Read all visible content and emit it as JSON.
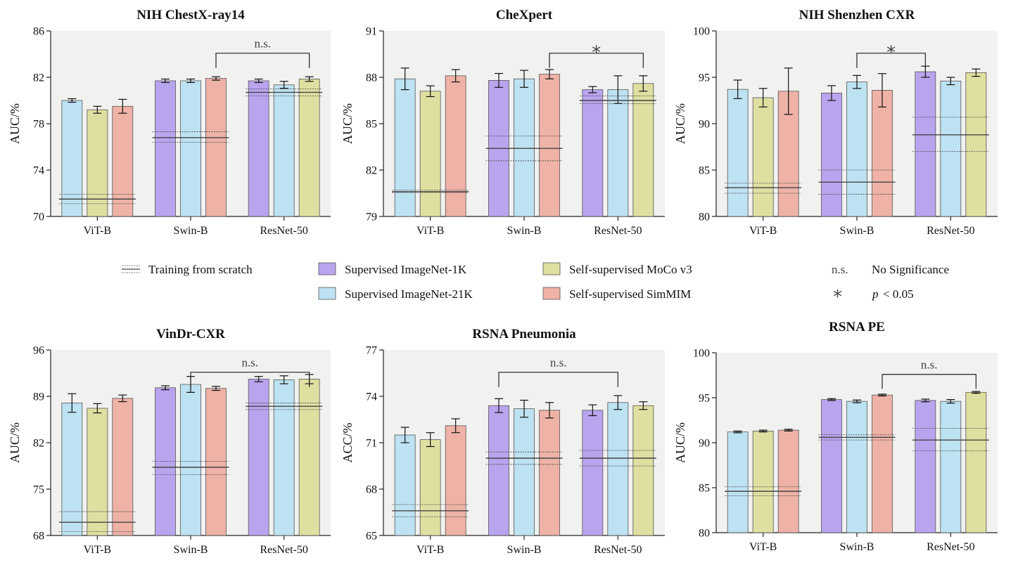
{
  "colors": {
    "Supervised ImageNet-1K": "#b9a4ee",
    "Supervised ImageNet-21K": "#bde2f2",
    "Self-supervised MoCo v3": "#dfdfa1",
    "Self-supervised SimMIM": "#eeb2a6",
    "panel_background": "#f1f1f0"
  },
  "legend": {
    "scratch": "Training from scratch",
    "in1k": "Supervised ImageNet-1K",
    "in21k": "Supervised ImageNet-21K",
    "moco": "Self-supervised MoCo v3",
    "simmim": "Self-supervised SimMIM",
    "ns_symbol": "n.s.",
    "ns_text": "No Significance",
    "star_symbol": "*",
    "p_label": "p",
    "p_text": "< 0.05"
  },
  "chart_data": [
    {
      "type": "bar",
      "title": "NIH ChestX-ray14",
      "ylabel": "AUC/%",
      "ylim": [
        70,
        86
      ],
      "yticks": [
        70,
        74,
        78,
        82,
        86
      ],
      "categories": [
        "ViT-B",
        "Swin-B",
        "ResNet-50"
      ],
      "groups": [
        {
          "bars": [
            {
              "series": "Supervised ImageNet-21K",
              "value": 80.0,
              "err": 0.15
            },
            {
              "series": "Self-supervised MoCo v3",
              "value": 79.2,
              "err": 0.3
            },
            {
              "series": "Self-supervised SimMIM",
              "value": 79.5,
              "err": 0.6
            }
          ],
          "scratch": {
            "mean": 71.5,
            "low": 71.1,
            "high": 71.9
          }
        },
        {
          "bars": [
            {
              "series": "Supervised ImageNet-1K",
              "value": 81.7,
              "err": 0.15
            },
            {
              "series": "Supervised ImageNet-21K",
              "value": 81.7,
              "err": 0.15
            },
            {
              "series": "Self-supervised SimMIM",
              "value": 81.9,
              "err": 0.15
            }
          ],
          "scratch": {
            "mean": 76.8,
            "low": 76.4,
            "high": 77.3
          }
        },
        {
          "bars": [
            {
              "series": "Supervised ImageNet-1K",
              "value": 81.7,
              "err": 0.15
            },
            {
              "series": "Supervised ImageNet-21K",
              "value": 81.35,
              "err": 0.3
            },
            {
              "series": "Self-supervised MoCo v3",
              "value": 81.85,
              "err": 0.2
            }
          ],
          "scratch": {
            "mean": 80.7,
            "low": 80.4,
            "high": 81.0
          }
        }
      ],
      "comparison": {
        "from_group": 1,
        "from_bar": 2,
        "to_group": 2,
        "to_bar": 2,
        "label": "n.s."
      }
    },
    {
      "type": "bar",
      "title": "CheXpert",
      "ylabel": "AUC/%",
      "ylim": [
        79,
        91
      ],
      "yticks": [
        79,
        82,
        85,
        88,
        91
      ],
      "categories": [
        "ViT-B",
        "Swin-B",
        "ResNet-50"
      ],
      "groups": [
        {
          "bars": [
            {
              "series": "Supervised ImageNet-21K",
              "value": 87.9,
              "err": 0.7
            },
            {
              "series": "Self-supervised MoCo v3",
              "value": 87.1,
              "err": 0.35
            },
            {
              "series": "Self-supervised SimMIM",
              "value": 88.1,
              "err": 0.4
            }
          ],
          "scratch": {
            "mean": 80.6,
            "low": 80.55,
            "high": 80.7
          }
        },
        {
          "bars": [
            {
              "series": "Supervised ImageNet-1K",
              "value": 87.8,
              "err": 0.45
            },
            {
              "series": "Supervised ImageNet-21K",
              "value": 87.9,
              "err": 0.55
            },
            {
              "series": "Self-supervised SimMIM",
              "value": 88.2,
              "err": 0.3
            }
          ],
          "scratch": {
            "mean": 83.4,
            "low": 82.6,
            "high": 84.2
          }
        },
        {
          "bars": [
            {
              "series": "Supervised ImageNet-1K",
              "value": 87.2,
              "err": 0.2
            },
            {
              "series": "Supervised ImageNet-21K",
              "value": 87.2,
              "err": 0.9
            },
            {
              "series": "Self-supervised MoCo v3",
              "value": 87.6,
              "err": 0.5
            }
          ],
          "scratch": {
            "mean": 86.5,
            "low": 86.3,
            "high": 86.8
          }
        }
      ],
      "comparison": {
        "from_group": 1,
        "from_bar": 2,
        "to_group": 2,
        "to_bar": 2,
        "label": "*"
      }
    },
    {
      "type": "bar",
      "title": "NIH Shenzhen CXR",
      "ylabel": "AUC/%",
      "ylim": [
        80,
        100
      ],
      "yticks": [
        80,
        85,
        90,
        95,
        100
      ],
      "categories": [
        "ViT-B",
        "Swin-B",
        "ResNet-50"
      ],
      "groups": [
        {
          "bars": [
            {
              "series": "Supervised ImageNet-21K",
              "value": 93.7,
              "err": 1.0
            },
            {
              "series": "Self-supervised MoCo v3",
              "value": 92.8,
              "err": 1.0
            },
            {
              "series": "Self-supervised SimMIM",
              "value": 93.5,
              "err": 2.5
            }
          ],
          "scratch": {
            "mean": 83.1,
            "low": 82.5,
            "high": 83.6
          }
        },
        {
          "bars": [
            {
              "series": "Supervised ImageNet-1K",
              "value": 93.3,
              "err": 0.8
            },
            {
              "series": "Supervised ImageNet-21K",
              "value": 94.5,
              "err": 0.7
            },
            {
              "series": "Self-supervised SimMIM",
              "value": 93.6,
              "err": 1.8
            }
          ],
          "scratch": {
            "mean": 83.7,
            "low": 82.4,
            "high": 85.0
          }
        },
        {
          "bars": [
            {
              "series": "Supervised ImageNet-1K",
              "value": 95.6,
              "err": 0.6
            },
            {
              "series": "Supervised ImageNet-21K",
              "value": 94.6,
              "err": 0.4
            },
            {
              "series": "Self-supervised MoCo v3",
              "value": 95.5,
              "err": 0.4
            }
          ],
          "scratch": {
            "mean": 88.8,
            "low": 87.0,
            "high": 90.7
          }
        }
      ],
      "comparison": {
        "from_group": 1,
        "from_bar": 1,
        "to_group": 2,
        "to_bar": 0,
        "label": "*"
      }
    },
    {
      "type": "bar",
      "title": "VinDr-CXR",
      "ylabel": "AUC/%",
      "ylim": [
        68,
        96
      ],
      "yticks": [
        68,
        75,
        82,
        89,
        96
      ],
      "categories": [
        "ViT-B",
        "Swin-B",
        "ResNet-50"
      ],
      "groups": [
        {
          "bars": [
            {
              "series": "Supervised ImageNet-21K",
              "value": 88.0,
              "err": 1.4
            },
            {
              "series": "Self-supervised MoCo v3",
              "value": 87.2,
              "err": 0.7
            },
            {
              "series": "Self-supervised SimMIM",
              "value": 88.7,
              "err": 0.5
            }
          ],
          "scratch": {
            "mean": 70.0,
            "low": 68.6,
            "high": 71.6
          }
        },
        {
          "bars": [
            {
              "series": "Supervised ImageNet-1K",
              "value": 90.3,
              "err": 0.3
            },
            {
              "series": "Supervised ImageNet-21K",
              "value": 90.8,
              "err": 1.2
            },
            {
              "series": "Self-supervised SimMIM",
              "value": 90.2,
              "err": 0.3
            }
          ],
          "scratch": {
            "mean": 78.3,
            "low": 77.2,
            "high": 79.2
          }
        },
        {
          "bars": [
            {
              "series": "Supervised ImageNet-1K",
              "value": 91.6,
              "err": 0.4
            },
            {
              "series": "Supervised ImageNet-21K",
              "value": 91.5,
              "err": 0.6
            },
            {
              "series": "Self-supervised MoCo v3",
              "value": 91.6,
              "err": 0.7
            }
          ],
          "scratch": {
            "mean": 87.5,
            "low": 87.0,
            "high": 88.0
          }
        }
      ],
      "comparison": {
        "from_group": 1,
        "from_bar": 1,
        "to_group": 2,
        "to_bar": 2,
        "label": "n.s."
      }
    },
    {
      "type": "bar",
      "title": "RSNA Pneumonia",
      "ylabel": "ACC/%",
      "ylim": [
        65,
        77
      ],
      "yticks": [
        65,
        68,
        71,
        74,
        77
      ],
      "categories": [
        "ViT-B",
        "Swin-B",
        "ResNet-50"
      ],
      "groups": [
        {
          "bars": [
            {
              "series": "Supervised ImageNet-21K",
              "value": 71.5,
              "err": 0.5
            },
            {
              "series": "Self-supervised MoCo v3",
              "value": 71.2,
              "err": 0.45
            },
            {
              "series": "Self-supervised SimMIM",
              "value": 72.1,
              "err": 0.45
            }
          ],
          "scratch": {
            "mean": 66.6,
            "low": 66.2,
            "high": 67.0
          }
        },
        {
          "bars": [
            {
              "series": "Supervised ImageNet-1K",
              "value": 73.4,
              "err": 0.45
            },
            {
              "series": "Supervised ImageNet-21K",
              "value": 73.2,
              "err": 0.55
            },
            {
              "series": "Self-supervised SimMIM",
              "value": 73.1,
              "err": 0.5
            }
          ],
          "scratch": {
            "mean": 70.0,
            "low": 69.6,
            "high": 70.4
          }
        },
        {
          "bars": [
            {
              "series": "Supervised ImageNet-1K",
              "value": 73.1,
              "err": 0.35
            },
            {
              "series": "Supervised ImageNet-21K",
              "value": 73.6,
              "err": 0.45
            },
            {
              "series": "Self-supervised MoCo v3",
              "value": 73.4,
              "err": 0.25
            }
          ],
          "scratch": {
            "mean": 70.0,
            "low": 69.5,
            "high": 70.5
          }
        }
      ],
      "comparison": {
        "from_group": 1,
        "from_bar": 0,
        "to_group": 2,
        "to_bar": 1,
        "label": "n.s."
      }
    },
    {
      "type": "bar",
      "title": "RSNA PE",
      "ylabel": "AUC/%",
      "ylim": [
        80,
        100
      ],
      "yticks": [
        80,
        85,
        90,
        95,
        100
      ],
      "categories": [
        "ViT-B",
        "Swin-B",
        "ResNet-50"
      ],
      "groups": [
        {
          "bars": [
            {
              "series": "Supervised ImageNet-21K",
              "value": 91.2,
              "err": 0.1
            },
            {
              "series": "Self-supervised MoCo v3",
              "value": 91.3,
              "err": 0.1
            },
            {
              "series": "Self-supervised SimMIM",
              "value": 91.4,
              "err": 0.1
            }
          ],
          "scratch": {
            "mean": 84.6,
            "low": 84.1,
            "high": 85.1
          }
        },
        {
          "bars": [
            {
              "series": "Supervised ImageNet-1K",
              "value": 94.8,
              "err": 0.1
            },
            {
              "series": "Supervised ImageNet-21K",
              "value": 94.6,
              "err": 0.15
            },
            {
              "series": "Self-supervised SimMIM",
              "value": 95.3,
              "err": 0.1
            }
          ],
          "scratch": {
            "mean": 90.6,
            "low": 90.3,
            "high": 90.9
          }
        },
        {
          "bars": [
            {
              "series": "Supervised ImageNet-1K",
              "value": 94.7,
              "err": 0.15
            },
            {
              "series": "Supervised ImageNet-21K",
              "value": 94.6,
              "err": 0.2
            },
            {
              "series": "Self-supervised MoCo v3",
              "value": 95.6,
              "err": 0.1
            }
          ],
          "scratch": {
            "mean": 90.3,
            "low": 89.1,
            "high": 91.6
          }
        }
      ],
      "comparison": {
        "from_group": 1,
        "from_bar": 2,
        "to_group": 2,
        "to_bar": 2,
        "label": "n.s."
      }
    }
  ]
}
